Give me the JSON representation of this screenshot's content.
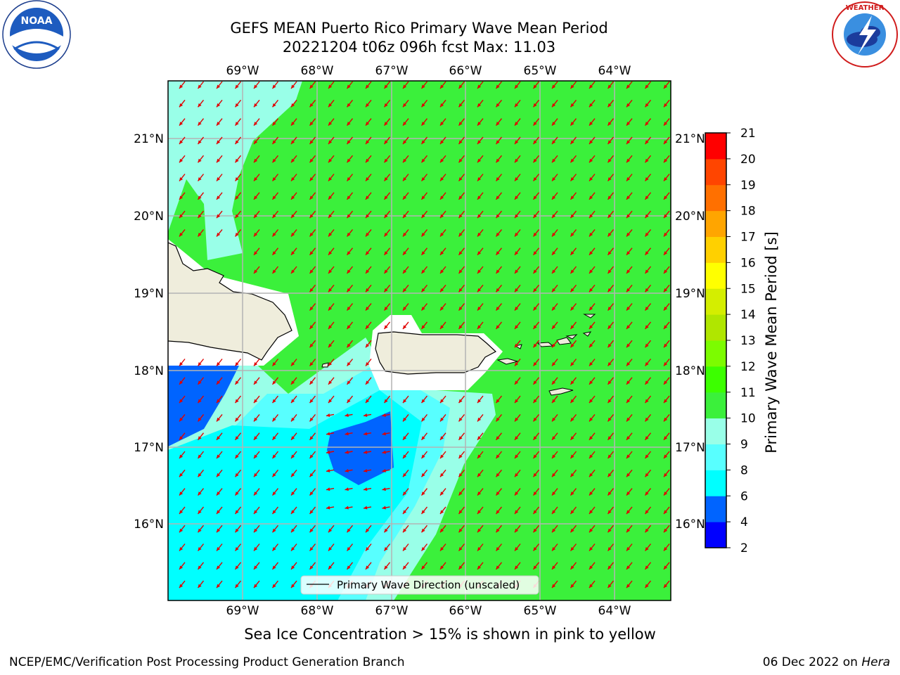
{
  "header": {
    "title_line1": "GEFS MEAN Puerto Rico Primary Wave Mean Period",
    "title_line2": "20221204 t06z 096h fcst   Max: 11.03"
  },
  "map": {
    "lon_labels": [
      "69°W",
      "68°W",
      "67°W",
      "66°W",
      "65°W",
      "64°W"
    ],
    "lat_labels": [
      "21°N",
      "20°N",
      "19°N",
      "18°N",
      "17°N",
      "16°N"
    ],
    "legend_label": "Primary Wave Direction (unscaled)",
    "land_color": "#efeddc",
    "arrow_color": "#e00000"
  },
  "colorbar": {
    "label": "Primary Wave Mean Period [s]",
    "ticks": [
      "2",
      "4",
      "6",
      "8",
      "9",
      "10",
      "11",
      "12",
      "13",
      "14",
      "15",
      "16",
      "17",
      "18",
      "19",
      "20",
      "21"
    ],
    "colors": [
      "#0000ff",
      "#0064ff",
      "#00ffff",
      "#58ffff",
      "#99ffe8",
      "#3bf03b",
      "#3cff00",
      "#7cfc00",
      "#b0e600",
      "#d4ee00",
      "#ffff00",
      "#ffd000",
      "#ffa500",
      "#ff7000",
      "#ff4500",
      "#ff0000"
    ]
  },
  "footer": {
    "note": "Sea Ice Concentration > 15% is shown in pink to yellow",
    "left": "NCEP/EMC/Verification Post Processing Product Generation Branch",
    "right_date": "06 Dec 2022 on",
    "right_machine": "Hera"
  },
  "logos": {
    "left": "NOAA",
    "right": "NATIONAL WEATHER SERVICE"
  }
}
